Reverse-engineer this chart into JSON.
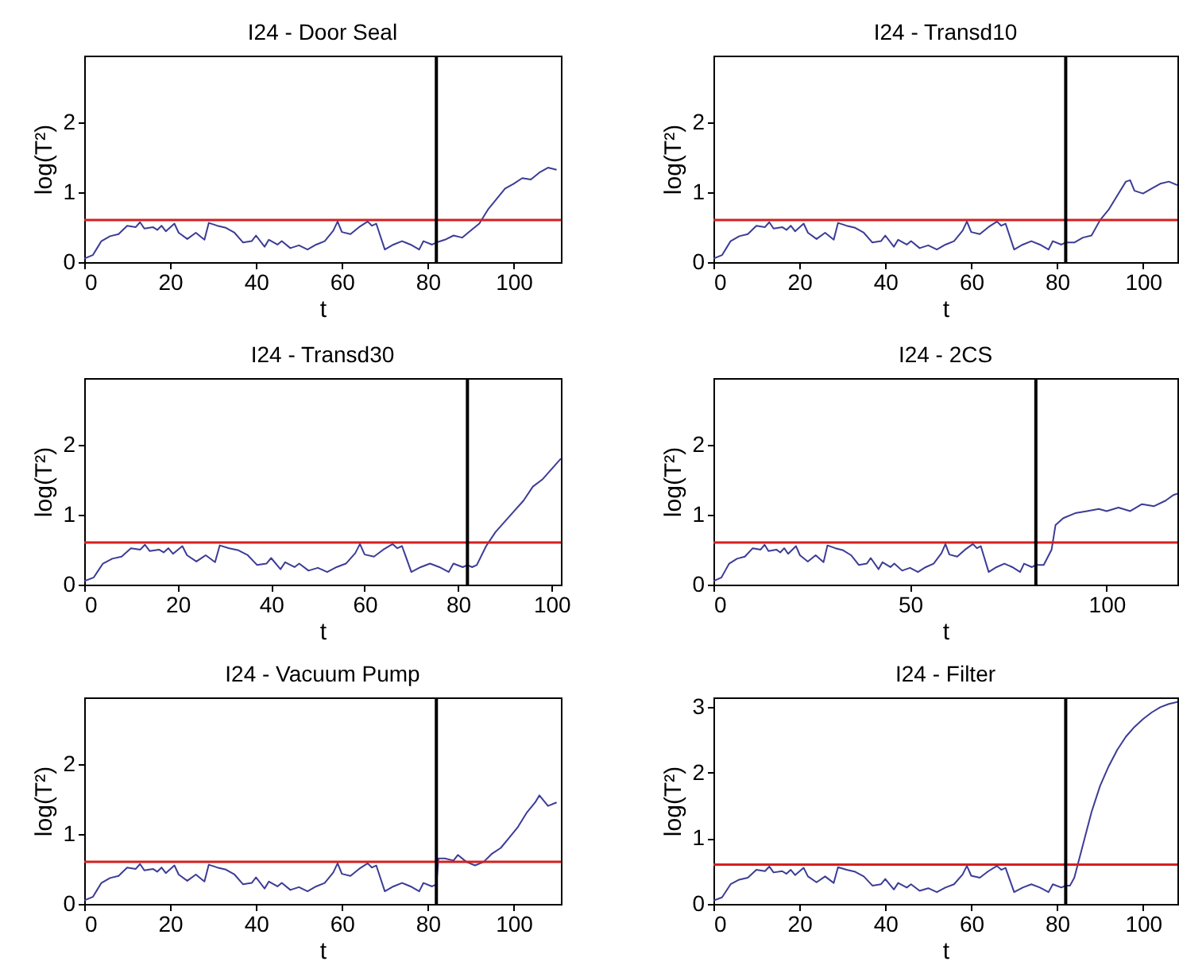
{
  "chart_data": [
    {
      "type": "line",
      "title": "I24 - Door Seal",
      "xlabel": "t",
      "ylabel": "log(T²)",
      "xlim": [
        0,
        111
      ],
      "ylim": [
        0,
        2.95
      ],
      "xticks": [
        0,
        20,
        40,
        60,
        80,
        100
      ],
      "yticks": [
        0,
        1,
        2
      ],
      "x": [
        0,
        2,
        3,
        4,
        6,
        8,
        10,
        12,
        13,
        14,
        16,
        17,
        18,
        19,
        21,
        22,
        24,
        26,
        28,
        29,
        31,
        33,
        35,
        37,
        39,
        40,
        42,
        43,
        45,
        46,
        48,
        50,
        52,
        54,
        56,
        58,
        59,
        60,
        62,
        64,
        66,
        67,
        68,
        70,
        72,
        74,
        76,
        78,
        79,
        81,
        82,
        84,
        86,
        88,
        90,
        92,
        94,
        96,
        98,
        100,
        102,
        104,
        106,
        108,
        110
      ],
      "series": [
        {
          "color": "#3c3c96",
          "values": [
            0.05,
            0.1,
            0.2,
            0.3,
            0.37,
            0.4,
            0.52,
            0.5,
            0.57,
            0.48,
            0.5,
            0.46,
            0.52,
            0.44,
            0.55,
            0.42,
            0.33,
            0.42,
            0.32,
            0.56,
            0.52,
            0.49,
            0.42,
            0.28,
            0.3,
            0.38,
            0.22,
            0.32,
            0.25,
            0.3,
            0.2,
            0.24,
            0.18,
            0.25,
            0.3,
            0.45,
            0.58,
            0.43,
            0.4,
            0.5,
            0.58,
            0.52,
            0.55,
            0.18,
            0.25,
            0.3,
            0.25,
            0.18,
            0.3,
            0.25,
            0.28,
            0.32,
            0.38,
            0.35,
            0.45,
            0.55,
            0.75,
            0.9,
            1.05,
            1.12,
            1.2,
            1.18,
            1.28,
            1.35,
            1.32
          ]
        }
      ],
      "ref_lines": [
        {
          "axis": "y",
          "value": 0.6,
          "color": "#d42020"
        },
        {
          "axis": "x",
          "value": 82,
          "color": "#000000"
        }
      ]
    },
    {
      "type": "line",
      "title": "I24 - Transd10",
      "xlabel": "t",
      "ylabel": "log(T²)",
      "xlim": [
        0,
        108
      ],
      "ylim": [
        0,
        2.95
      ],
      "xticks": [
        0,
        20,
        40,
        60,
        80,
        100
      ],
      "yticks": [
        0,
        1,
        2
      ],
      "x": [
        0,
        2,
        3,
        4,
        6,
        8,
        10,
        12,
        13,
        14,
        16,
        17,
        18,
        19,
        21,
        22,
        24,
        26,
        28,
        29,
        31,
        33,
        35,
        37,
        39,
        40,
        42,
        43,
        45,
        46,
        48,
        50,
        52,
        54,
        56,
        58,
        59,
        60,
        62,
        64,
        66,
        67,
        68,
        70,
        72,
        74,
        76,
        78,
        79,
        81,
        82,
        84,
        86,
        88,
        90,
        92,
        94,
        96,
        97,
        98,
        100,
        102,
        104,
        106,
        108
      ],
      "series": [
        {
          "color": "#3c3c96",
          "values": [
            0.05,
            0.1,
            0.2,
            0.3,
            0.37,
            0.4,
            0.52,
            0.5,
            0.57,
            0.48,
            0.5,
            0.46,
            0.52,
            0.44,
            0.55,
            0.42,
            0.33,
            0.42,
            0.32,
            0.56,
            0.52,
            0.49,
            0.42,
            0.28,
            0.3,
            0.38,
            0.22,
            0.32,
            0.25,
            0.3,
            0.2,
            0.24,
            0.18,
            0.25,
            0.3,
            0.45,
            0.58,
            0.43,
            0.4,
            0.5,
            0.58,
            0.52,
            0.55,
            0.18,
            0.25,
            0.3,
            0.25,
            0.18,
            0.3,
            0.25,
            0.28,
            0.28,
            0.35,
            0.38,
            0.6,
            0.75,
            0.95,
            1.15,
            1.17,
            1.02,
            0.98,
            1.05,
            1.12,
            1.15,
            1.1
          ]
        }
      ],
      "ref_lines": [
        {
          "axis": "y",
          "value": 0.6,
          "color": "#d42020"
        },
        {
          "axis": "x",
          "value": 82,
          "color": "#000000"
        }
      ]
    },
    {
      "type": "line",
      "title": "I24 - Transd30",
      "xlabel": "t",
      "ylabel": "log(T²)",
      "xlim": [
        0,
        102
      ],
      "ylim": [
        0,
        2.95
      ],
      "xticks": [
        0,
        20,
        40,
        60,
        80,
        100
      ],
      "yticks": [
        0,
        1,
        2
      ],
      "x": [
        0,
        2,
        3,
        4,
        6,
        8,
        10,
        12,
        13,
        14,
        16,
        17,
        18,
        19,
        21,
        22,
        24,
        26,
        28,
        29,
        31,
        33,
        35,
        37,
        39,
        40,
        42,
        43,
        45,
        46,
        48,
        50,
        52,
        54,
        56,
        58,
        59,
        60,
        62,
        64,
        66,
        67,
        68,
        70,
        72,
        74,
        76,
        78,
        79,
        81,
        82,
        83,
        84,
        86,
        88,
        90,
        92,
        94,
        96,
        98,
        100,
        102
      ],
      "series": [
        {
          "color": "#3c3c96",
          "values": [
            0.05,
            0.1,
            0.2,
            0.3,
            0.37,
            0.4,
            0.52,
            0.5,
            0.57,
            0.48,
            0.5,
            0.46,
            0.52,
            0.44,
            0.55,
            0.42,
            0.33,
            0.42,
            0.32,
            0.56,
            0.52,
            0.49,
            0.42,
            0.28,
            0.3,
            0.38,
            0.22,
            0.32,
            0.25,
            0.3,
            0.2,
            0.24,
            0.18,
            0.25,
            0.3,
            0.45,
            0.58,
            0.43,
            0.4,
            0.5,
            0.58,
            0.52,
            0.55,
            0.18,
            0.25,
            0.3,
            0.25,
            0.18,
            0.3,
            0.25,
            0.28,
            0.25,
            0.28,
            0.55,
            0.75,
            0.9,
            1.05,
            1.2,
            1.4,
            1.5,
            1.65,
            1.8
          ]
        }
      ],
      "ref_lines": [
        {
          "axis": "y",
          "value": 0.6,
          "color": "#d42020"
        },
        {
          "axis": "x",
          "value": 82,
          "color": "#000000"
        }
      ]
    },
    {
      "type": "line",
      "title": "I24 - 2CS",
      "xlabel": "t",
      "ylabel": "log(T²)",
      "xlim": [
        0,
        118
      ],
      "ylim": [
        0,
        2.95
      ],
      "xticks": [
        0,
        50,
        100
      ],
      "yticks": [
        0,
        1,
        2
      ],
      "x": [
        0,
        2,
        3,
        4,
        6,
        8,
        10,
        12,
        13,
        14,
        16,
        17,
        18,
        19,
        21,
        22,
        24,
        26,
        28,
        29,
        31,
        33,
        35,
        37,
        39,
        40,
        42,
        43,
        45,
        46,
        48,
        50,
        52,
        54,
        56,
        58,
        59,
        60,
        62,
        64,
        66,
        67,
        68,
        70,
        72,
        74,
        76,
        78,
        79,
        81,
        82,
        84,
        86,
        87,
        89,
        92,
        95,
        98,
        100,
        103,
        106,
        109,
        112,
        115,
        117,
        118
      ],
      "series": [
        {
          "color": "#3c3c96",
          "values": [
            0.05,
            0.1,
            0.2,
            0.3,
            0.37,
            0.4,
            0.52,
            0.5,
            0.57,
            0.48,
            0.5,
            0.46,
            0.52,
            0.44,
            0.55,
            0.42,
            0.33,
            0.42,
            0.32,
            0.56,
            0.52,
            0.49,
            0.42,
            0.28,
            0.3,
            0.38,
            0.22,
            0.32,
            0.25,
            0.3,
            0.2,
            0.24,
            0.18,
            0.25,
            0.3,
            0.45,
            0.58,
            0.43,
            0.4,
            0.5,
            0.58,
            0.52,
            0.55,
            0.18,
            0.25,
            0.3,
            0.25,
            0.18,
            0.3,
            0.25,
            0.28,
            0.28,
            0.5,
            0.85,
            0.95,
            1.02,
            1.05,
            1.08,
            1.05,
            1.1,
            1.05,
            1.15,
            1.12,
            1.2,
            1.28,
            1.3
          ]
        }
      ],
      "ref_lines": [
        {
          "axis": "y",
          "value": 0.6,
          "color": "#d42020"
        },
        {
          "axis": "x",
          "value": 82,
          "color": "#000000"
        }
      ]
    },
    {
      "type": "line",
      "title": "I24 - Vacuum Pump",
      "xlabel": "t",
      "ylabel": "log(T²)",
      "xlim": [
        0,
        111
      ],
      "ylim": [
        0,
        2.95
      ],
      "xticks": [
        0,
        20,
        40,
        60,
        80,
        100
      ],
      "yticks": [
        0,
        1,
        2
      ],
      "x": [
        0,
        2,
        3,
        4,
        6,
        8,
        10,
        12,
        13,
        14,
        16,
        17,
        18,
        19,
        21,
        22,
        24,
        26,
        28,
        29,
        31,
        33,
        35,
        37,
        39,
        40,
        42,
        43,
        45,
        46,
        48,
        50,
        52,
        54,
        56,
        58,
        59,
        60,
        62,
        64,
        66,
        67,
        68,
        70,
        72,
        74,
        76,
        78,
        79,
        81,
        82,
        82.5,
        84,
        86,
        87,
        89,
        91,
        93,
        95,
        97,
        99,
        101,
        103,
        105,
        106,
        108,
        110
      ],
      "series": [
        {
          "color": "#3c3c96",
          "values": [
            0.05,
            0.1,
            0.2,
            0.3,
            0.37,
            0.4,
            0.52,
            0.5,
            0.57,
            0.48,
            0.5,
            0.46,
            0.52,
            0.44,
            0.55,
            0.42,
            0.33,
            0.42,
            0.32,
            0.56,
            0.52,
            0.49,
            0.42,
            0.28,
            0.3,
            0.38,
            0.22,
            0.32,
            0.25,
            0.3,
            0.2,
            0.24,
            0.18,
            0.25,
            0.3,
            0.45,
            0.58,
            0.43,
            0.4,
            0.5,
            0.58,
            0.52,
            0.55,
            0.18,
            0.25,
            0.3,
            0.25,
            0.18,
            0.3,
            0.25,
            0.28,
            0.65,
            0.65,
            0.62,
            0.7,
            0.6,
            0.55,
            0.6,
            0.72,
            0.8,
            0.95,
            1.1,
            1.3,
            1.45,
            1.55,
            1.4,
            1.45
          ]
        }
      ],
      "ref_lines": [
        {
          "axis": "y",
          "value": 0.6,
          "color": "#d42020"
        },
        {
          "axis": "x",
          "value": 82,
          "color": "#000000"
        }
      ]
    },
    {
      "type": "line",
      "title": "I24 - Filter",
      "xlabel": "t",
      "ylabel": "log(T²)",
      "xlim": [
        0,
        108
      ],
      "ylim": [
        0,
        3.15
      ],
      "xticks": [
        0,
        20,
        40,
        60,
        80,
        100
      ],
      "yticks": [
        0,
        1,
        2,
        3
      ],
      "x": [
        0,
        2,
        3,
        4,
        6,
        8,
        10,
        12,
        13,
        14,
        16,
        17,
        18,
        19,
        21,
        22,
        24,
        26,
        28,
        29,
        31,
        33,
        35,
        37,
        39,
        40,
        42,
        43,
        45,
        46,
        48,
        50,
        52,
        54,
        56,
        58,
        59,
        60,
        62,
        64,
        66,
        67,
        68,
        70,
        72,
        74,
        76,
        78,
        79,
        81,
        82,
        83,
        84,
        86,
        88,
        90,
        92,
        94,
        96,
        98,
        100,
        102,
        104,
        106,
        108
      ],
      "series": [
        {
          "color": "#3c3c96",
          "values": [
            0.05,
            0.1,
            0.2,
            0.3,
            0.37,
            0.4,
            0.52,
            0.5,
            0.57,
            0.48,
            0.5,
            0.46,
            0.52,
            0.44,
            0.55,
            0.42,
            0.33,
            0.42,
            0.32,
            0.56,
            0.52,
            0.49,
            0.42,
            0.28,
            0.3,
            0.38,
            0.22,
            0.32,
            0.25,
            0.3,
            0.2,
            0.24,
            0.18,
            0.25,
            0.3,
            0.45,
            0.58,
            0.43,
            0.4,
            0.5,
            0.58,
            0.52,
            0.55,
            0.18,
            0.25,
            0.3,
            0.25,
            0.18,
            0.3,
            0.25,
            0.28,
            0.28,
            0.4,
            0.9,
            1.4,
            1.8,
            2.1,
            2.35,
            2.55,
            2.7,
            2.82,
            2.92,
            3.0,
            3.05,
            3.08
          ]
        }
      ],
      "ref_lines": [
        {
          "axis": "y",
          "value": 0.6,
          "color": "#d42020"
        },
        {
          "axis": "x",
          "value": 82,
          "color": "#000000"
        }
      ]
    }
  ]
}
